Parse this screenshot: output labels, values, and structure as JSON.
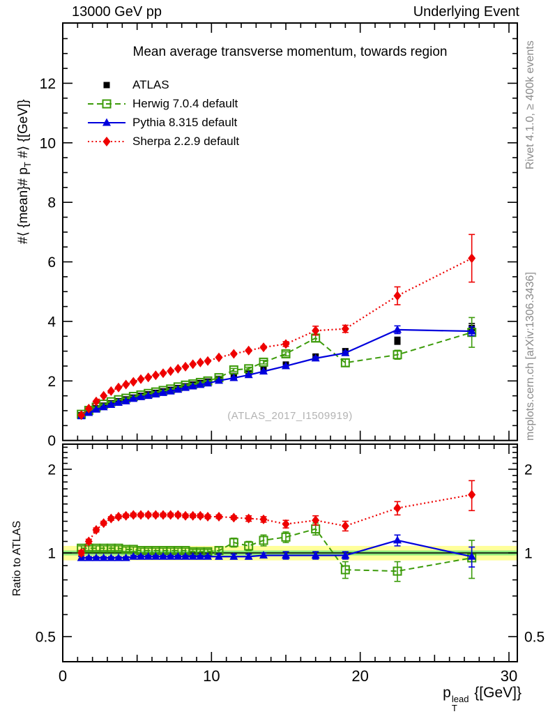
{
  "header": {
    "left_title": "13000 GeV pp",
    "right_title": "Underlying Event"
  },
  "side_notes": {
    "right_top": "Rivet 4.1.0, ≥ 400k events",
    "right_bottom": "mcplots.cern.ch [arXiv:1306.3436]"
  },
  "watermark": "(ATLAS_2017_I1509919)",
  "titles": {
    "plot_title": "Mean average transverse momentum, towards region",
    "y_main": {
      "pre": "#⟨ {mean}# p",
      "sub": "T",
      "post": " #⟩ {[GeV]}"
    },
    "y_ratio": "Ratio to ATLAS",
    "x": {
      "base": "p",
      "sup": "lead",
      "sub": "T",
      "post": " {[GeV]}"
    }
  },
  "chart_data": [
    {
      "type": "scatter",
      "panel": "main",
      "title": "Mean average transverse momentum, towards region",
      "xlabel": "p_T^lead [GeV]",
      "ylabel": "<mean p_T> [GeV]",
      "xlim": [
        0,
        30.6
      ],
      "ylim": [
        0,
        14
      ],
      "xticks": [
        0,
        10,
        20,
        30
      ],
      "xtick_labels": [
        "0",
        "10",
        "20",
        "30"
      ],
      "yticks": [
        0,
        2,
        4,
        6,
        8,
        10,
        12
      ],
      "ytick_labels": [
        "0",
        "2",
        "4",
        "6",
        "8",
        "10",
        "12"
      ],
      "grid": false,
      "legend_position": "upper-left",
      "x": [
        1.25,
        1.75,
        2.25,
        2.75,
        3.25,
        3.75,
        4.25,
        4.75,
        5.25,
        5.75,
        6.25,
        6.75,
        7.25,
        7.75,
        8.25,
        8.75,
        9.25,
        9.75,
        10.5,
        11.5,
        12.5,
        13.5,
        15,
        17,
        19,
        22.5,
        27.5
      ],
      "series": [
        {
          "name": "ATLAS",
          "color": "#000000",
          "marker": "filled-square",
          "line": "none",
          "values": [
            0.85,
            0.97,
            1.08,
            1.17,
            1.25,
            1.32,
            1.38,
            1.44,
            1.5,
            1.55,
            1.6,
            1.65,
            1.7,
            1.76,
            1.82,
            1.88,
            1.93,
            1.98,
            2.07,
            2.17,
            2.27,
            2.37,
            2.55,
            2.82,
            3.0,
            3.35,
            3.78
          ],
          "errors": [
            0.01,
            0.01,
            0.01,
            0.01,
            0.01,
            0.01,
            0.01,
            0.01,
            0.01,
            0.01,
            0.01,
            0.01,
            0.01,
            0.01,
            0.02,
            0.02,
            0.02,
            0.02,
            0.02,
            0.03,
            0.03,
            0.04,
            0.05,
            0.07,
            0.08,
            0.12,
            0.15
          ]
        },
        {
          "name": "Herwig 7.0.4 default",
          "color": "#3c9b0a",
          "marker": "open-square",
          "line": "dashed",
          "values": [
            0.88,
            1.01,
            1.12,
            1.22,
            1.3,
            1.37,
            1.42,
            1.48,
            1.53,
            1.58,
            1.63,
            1.68,
            1.73,
            1.8,
            1.86,
            1.9,
            1.95,
            2.0,
            2.11,
            2.37,
            2.41,
            2.63,
            2.91,
            3.44,
            2.61,
            2.88,
            3.63
          ],
          "errors": [
            0.01,
            0.01,
            0.01,
            0.01,
            0.01,
            0.01,
            0.01,
            0.01,
            0.01,
            0.01,
            0.01,
            0.01,
            0.01,
            0.01,
            0.02,
            0.02,
            0.02,
            0.02,
            0.03,
            0.05,
            0.05,
            0.06,
            0.07,
            0.12,
            0.12,
            0.15,
            0.5
          ]
        },
        {
          "name": "Pythia 8.315 default",
          "color": "#0000dd",
          "marker": "filled-triangle",
          "line": "solid",
          "values": [
            0.82,
            0.93,
            1.04,
            1.12,
            1.2,
            1.27,
            1.32,
            1.4,
            1.46,
            1.5,
            1.55,
            1.6,
            1.65,
            1.71,
            1.77,
            1.82,
            1.87,
            1.92,
            2.01,
            2.1,
            2.2,
            2.32,
            2.5,
            2.76,
            2.94,
            3.72,
            3.67
          ],
          "errors": [
            0.01,
            0.01,
            0.01,
            0.01,
            0.01,
            0.01,
            0.01,
            0.01,
            0.01,
            0.01,
            0.01,
            0.01,
            0.01,
            0.01,
            0.01,
            0.01,
            0.01,
            0.01,
            0.02,
            0.02,
            0.02,
            0.03,
            0.03,
            0.05,
            0.06,
            0.13,
            0.15
          ]
        },
        {
          "name": "Sherpa 2.2.9 default",
          "color": "#ee0000",
          "marker": "filled-diamond",
          "line": "dotted",
          "values": [
            0.85,
            1.07,
            1.31,
            1.5,
            1.66,
            1.78,
            1.88,
            1.97,
            2.06,
            2.12,
            2.19,
            2.26,
            2.33,
            2.41,
            2.48,
            2.56,
            2.62,
            2.67,
            2.79,
            2.91,
            3.02,
            3.13,
            3.24,
            3.69,
            3.75,
            4.86,
            6.12
          ],
          "errors": [
            0.01,
            0.01,
            0.01,
            0.01,
            0.01,
            0.01,
            0.01,
            0.01,
            0.01,
            0.01,
            0.01,
            0.01,
            0.01,
            0.01,
            0.02,
            0.02,
            0.02,
            0.02,
            0.02,
            0.03,
            0.03,
            0.04,
            0.08,
            0.15,
            0.12,
            0.3,
            0.8
          ]
        }
      ]
    },
    {
      "type": "scatter",
      "panel": "ratio",
      "ylabel": "Ratio to ATLAS",
      "yscale": "log",
      "ylim": [
        0.41,
        2.46
      ],
      "yticks": [
        0.5,
        1,
        2
      ],
      "ytick_labels": [
        "0.5",
        "1",
        "2"
      ],
      "reference_band": {
        "outer": [
          0.94,
          1.06
        ],
        "inner": [
          0.98,
          1.02
        ],
        "outer_color": "#ffff9a",
        "inner_color": "#8ce87a",
        "line_value": 1
      },
      "x": [
        1.25,
        1.75,
        2.25,
        2.75,
        3.25,
        3.75,
        4.25,
        4.75,
        5.25,
        5.75,
        6.25,
        6.75,
        7.25,
        7.75,
        8.25,
        8.75,
        9.25,
        9.75,
        10.5,
        11.5,
        12.5,
        13.5,
        15,
        17,
        19,
        22.5,
        27.5
      ],
      "series": [
        {
          "name": "Herwig 7.0.4 default",
          "color": "#3c9b0a",
          "marker": "open-square",
          "line": "dashed",
          "values": [
            1.04,
            1.04,
            1.04,
            1.04,
            1.04,
            1.04,
            1.03,
            1.03,
            1.02,
            1.02,
            1.02,
            1.02,
            1.02,
            1.02,
            1.02,
            1.01,
            1.01,
            1.01,
            1.02,
            1.09,
            1.06,
            1.11,
            1.14,
            1.22,
            0.87,
            0.86,
            0.96
          ],
          "errors": [
            0.02,
            0.02,
            0.02,
            0.02,
            0.02,
            0.02,
            0.02,
            0.02,
            0.02,
            0.02,
            0.02,
            0.02,
            0.02,
            0.02,
            0.02,
            0.02,
            0.02,
            0.02,
            0.03,
            0.04,
            0.04,
            0.05,
            0.05,
            0.06,
            0.06,
            0.07,
            0.15
          ]
        },
        {
          "name": "Pythia 8.315 default",
          "color": "#0000dd",
          "marker": "filled-triangle",
          "line": "solid",
          "values": [
            0.96,
            0.96,
            0.96,
            0.96,
            0.96,
            0.96,
            0.96,
            0.97,
            0.97,
            0.97,
            0.97,
            0.97,
            0.97,
            0.97,
            0.97,
            0.97,
            0.97,
            0.97,
            0.97,
            0.97,
            0.97,
            0.98,
            0.98,
            0.98,
            0.98,
            1.11,
            0.97
          ],
          "errors": [
            0.01,
            0.01,
            0.01,
            0.01,
            0.01,
            0.01,
            0.01,
            0.01,
            0.01,
            0.01,
            0.01,
            0.01,
            0.01,
            0.01,
            0.01,
            0.01,
            0.01,
            0.01,
            0.02,
            0.02,
            0.02,
            0.02,
            0.03,
            0.03,
            0.03,
            0.05,
            0.08
          ]
        },
        {
          "name": "Sherpa 2.2.9 default",
          "color": "#ee0000",
          "marker": "filled-diamond",
          "line": "dotted",
          "values": [
            1.0,
            1.1,
            1.21,
            1.28,
            1.33,
            1.35,
            1.36,
            1.37,
            1.37,
            1.37,
            1.37,
            1.37,
            1.37,
            1.37,
            1.36,
            1.36,
            1.36,
            1.35,
            1.35,
            1.34,
            1.33,
            1.32,
            1.27,
            1.31,
            1.25,
            1.45,
            1.62
          ],
          "errors": [
            0.02,
            0.02,
            0.02,
            0.02,
            0.02,
            0.02,
            0.02,
            0.02,
            0.02,
            0.02,
            0.02,
            0.02,
            0.02,
            0.02,
            0.02,
            0.02,
            0.02,
            0.02,
            0.02,
            0.02,
            0.03,
            0.03,
            0.04,
            0.05,
            0.05,
            0.08,
            0.2
          ]
        }
      ]
    }
  ]
}
